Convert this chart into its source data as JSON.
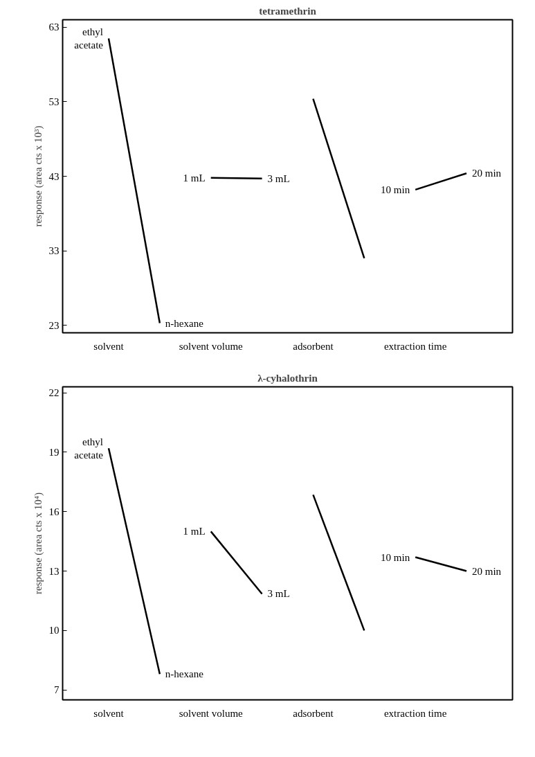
{
  "chart_data": [
    {
      "type": "line",
      "title": "tetramethrin",
      "ylabel": "response (area cts x 10³)",
      "ylim": [
        22,
        64
      ],
      "yticks": [
        23,
        33,
        43,
        53,
        63
      ],
      "categories": [
        "solvent",
        null,
        "solvent volume",
        null,
        "adsorbent",
        null,
        "extraction time",
        null
      ],
      "series": [
        {
          "color": "#000000",
          "values": [
            61.5,
            23.3,
            null,
            null,
            null,
            null,
            null,
            null
          ]
        },
        {
          "color": "#000000",
          "values": [
            null,
            null,
            42.8,
            42.7,
            null,
            null,
            null,
            null
          ]
        },
        {
          "color": "#000000",
          "values": [
            null,
            null,
            null,
            null,
            53.4,
            32.0,
            null,
            null
          ]
        },
        {
          "color": "#000000",
          "values": [
            null,
            null,
            null,
            null,
            null,
            null,
            41.2,
            43.4
          ]
        }
      ],
      "annotations": [
        {
          "text": "ethyl\nacetate",
          "x": "solvent",
          "y": 61.5
        },
        "n-hexane",
        {
          "text": "1 mL",
          "x": "solvent volume",
          "y": 42.8
        },
        "3 mL",
        {
          "text": "10 min",
          "x": "extraction time",
          "y": 41.2
        },
        "20 min"
      ],
      "grid": false,
      "marker": "none",
      "line_style": "solid"
    },
    {
      "type": "line",
      "title": "λ-cyhalothrin",
      "ylabel": "response (area cts x 10⁴)",
      "ylim": [
        6.5,
        22.3
      ],
      "yticks": [
        7,
        10,
        13,
        16,
        19,
        22
      ],
      "categories": [
        "solvent",
        null,
        "solvent volume",
        null,
        "adsorbent",
        null,
        "extraction time",
        null
      ],
      "series": [
        {
          "color": "#000000",
          "values": [
            19.2,
            7.8,
            null,
            null,
            null,
            null,
            null,
            null
          ]
        },
        {
          "color": "#000000",
          "values": [
            null,
            null,
            15.0,
            11.85,
            null,
            null,
            null,
            null
          ]
        },
        {
          "color": "#000000",
          "values": [
            null,
            null,
            null,
            null,
            16.85,
            10.0,
            null,
            null
          ]
        },
        {
          "color": "#000000",
          "values": [
            null,
            null,
            null,
            null,
            null,
            null,
            13.7,
            13.0
          ]
        }
      ],
      "annotations": [
        {
          "text": "ethyl\nacetate",
          "x": "solvent",
          "y": 19.2
        },
        "n-hexane",
        {
          "text": "1 mL",
          "x": "solvent volume",
          "y": 15.0
        },
        "3 mL",
        {
          "text": "10 min",
          "x": "extraction time",
          "y": 13.7
        },
        "20 min"
      ],
      "grid": false,
      "marker": "none",
      "line_style": "solid"
    }
  ]
}
